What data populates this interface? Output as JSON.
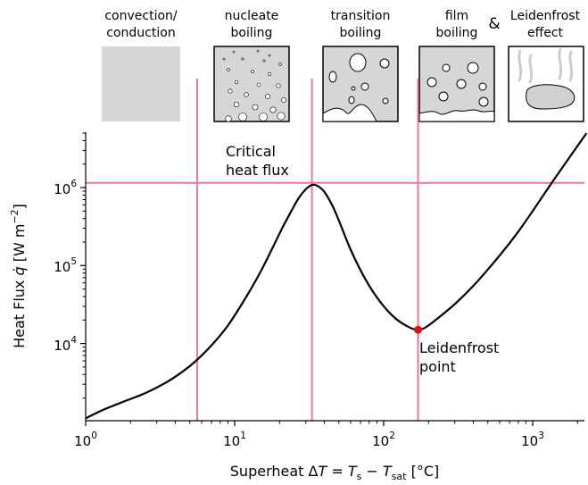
{
  "chart_data": {
    "type": "line",
    "x_scale": "log",
    "y_scale": "log",
    "xlim": [
      1,
      2300
    ],
    "ylim": [
      1100,
      5500000
    ],
    "x_ticks": [
      {
        "value": 1,
        "base": "10",
        "exp": "0"
      },
      {
        "value": 10,
        "base": "10",
        "exp": "1"
      },
      {
        "value": 100,
        "base": "10",
        "exp": "2"
      },
      {
        "value": 1000,
        "base": "10",
        "exp": "3"
      }
    ],
    "y_ticks": [
      {
        "value": 10000,
        "base": "10",
        "exp": "4"
      },
      {
        "value": 100000,
        "base": "10",
        "exp": "5"
      },
      {
        "value": 1000000,
        "base": "10",
        "exp": "6"
      }
    ],
    "xlabel": {
      "prefix": "Superheat Δ",
      "var": "T",
      "eq": " = ",
      "t1": "T",
      "s1": "s",
      "minus": " − ",
      "t2": "T",
      "s2": "sat",
      "unit": " [°C]"
    },
    "ylabel": {
      "prefix": "Heat Flux ",
      "qdot": "q̇",
      "unit_open": " [W m",
      "unit_exp": "−2",
      "unit_close": "]"
    },
    "curve": {
      "color": "#000000",
      "points": [
        [
          1.0,
          1100
        ],
        [
          1.3,
          1400
        ],
        [
          1.8,
          1800
        ],
        [
          2.5,
          2300
        ],
        [
          3.5,
          3200
        ],
        [
          4.5,
          4400
        ],
        [
          5.5,
          6000
        ],
        [
          7,
          9500
        ],
        [
          9,
          17000
        ],
        [
          12,
          40000
        ],
        [
          15,
          85000
        ],
        [
          18,
          170000
        ],
        [
          21,
          310000
        ],
        [
          24,
          500000
        ],
        [
          27,
          740000
        ],
        [
          30,
          950000
        ],
        [
          33,
          1080000
        ],
        [
          36,
          1050000
        ],
        [
          40,
          880000
        ],
        [
          45,
          600000
        ],
        [
          50,
          380000
        ],
        [
          60,
          160000
        ],
        [
          75,
          68000
        ],
        [
          95,
          34000
        ],
        [
          120,
          21000
        ],
        [
          150,
          16000
        ],
        [
          170,
          15000
        ],
        [
          190,
          16000
        ],
        [
          230,
          21000
        ],
        [
          300,
          32000
        ],
        [
          400,
          55000
        ],
        [
          550,
          110000
        ],
        [
          750,
          230000
        ],
        [
          1000,
          500000
        ],
        [
          1300,
          1050000
        ],
        [
          1700,
          2200000
        ],
        [
          2300,
          5000000
        ]
      ]
    },
    "guide_lines": {
      "color": "#ee7799",
      "vertical_x": [
        5.6,
        33,
        170
      ],
      "horizontal_y": 1150000
    },
    "marker": {
      "x": 170,
      "y": 15000,
      "color": "#dd1111"
    },
    "annotations": [
      {
        "id": "critical-heat-flux",
        "lines": [
          "Critical",
          "heat flux"
        ]
      },
      {
        "id": "leidenfrost-point",
        "lines": [
          "Leidenfrost",
          "point"
        ]
      }
    ],
    "regimes": [
      {
        "id": "convection",
        "lines": [
          "convection/",
          "conduction"
        ]
      },
      {
        "id": "nucleate",
        "lines": [
          "nucleate",
          "boiling"
        ]
      },
      {
        "id": "transition",
        "lines": [
          "transition",
          "boiling"
        ]
      },
      {
        "id": "film",
        "lines": [
          "film",
          "boiling"
        ]
      },
      {
        "id": "leidenfrost",
        "lines": [
          "Leidenfrost",
          "effect"
        ]
      }
    ],
    "connector": "&",
    "grid": false,
    "legend": "none"
  }
}
